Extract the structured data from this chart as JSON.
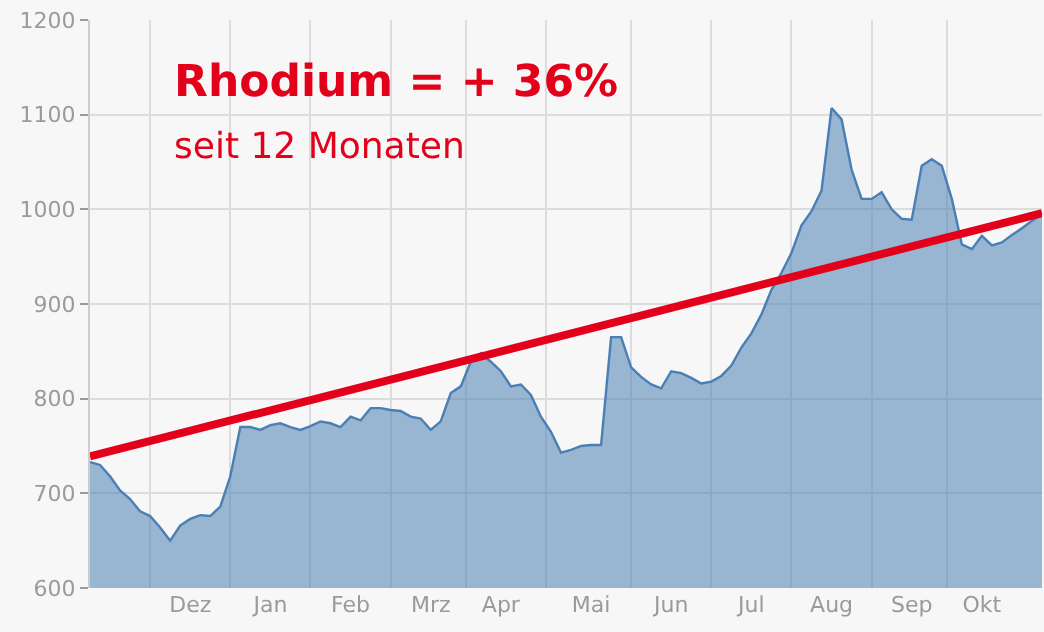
{
  "chart_data": {
    "type": "area",
    "title": "Rhodium = + 36%",
    "subtitle": "seit 12 Monaten",
    "categories": [
      null,
      null,
      null,
      null,
      null,
      null,
      null,
      null,
      null,
      null,
      "Dez",
      null,
      null,
      null,
      null,
      null,
      null,
      null,
      "Jan",
      null,
      null,
      null,
      null,
      null,
      null,
      null,
      "Feb",
      null,
      null,
      null,
      null,
      null,
      null,
      null,
      "Mrz",
      null,
      null,
      null,
      null,
      null,
      null,
      "Apr",
      null,
      null,
      null,
      null,
      null,
      null,
      null,
      null,
      "Mai",
      null,
      null,
      null,
      null,
      null,
      null,
      null,
      "Jun",
      null,
      null,
      null,
      null,
      null,
      null,
      null,
      "Jul",
      null,
      null,
      null,
      null,
      null,
      null,
      null,
      "Aug",
      null,
      null,
      null,
      null,
      null,
      null,
      null,
      "Sep",
      null,
      null,
      null,
      null,
      null,
      null,
      "Okt",
      null,
      null,
      null,
      null,
      null,
      null
    ],
    "series": [
      {
        "color": "#4a7fb5",
        "values": [
          733,
          730,
          718,
          703,
          694,
          681,
          676,
          664,
          650,
          666,
          673,
          677,
          676,
          686,
          718,
          770,
          770,
          767,
          772,
          774,
          770,
          767,
          771,
          776,
          774,
          770,
          781,
          777,
          790,
          790,
          788,
          787,
          781,
          779,
          767,
          776,
          806,
          813,
          839,
          848,
          839,
          829,
          813,
          815,
          804,
          781,
          765,
          743,
          746,
          750,
          751,
          751,
          865,
          865,
          833,
          823,
          815,
          811,
          829,
          827,
          822,
          816,
          818,
          824,
          835,
          854,
          869,
          889,
          915,
          933,
          954,
          983,
          998,
          1020,
          1107,
          1095,
          1042,
          1011,
          1011,
          1018,
          1000,
          990,
          989,
          1046,
          1053,
          1046,
          1011,
          963,
          958,
          972,
          962,
          965,
          973,
          980,
          988,
          995
        ]
      },
      {
        "type": "line",
        "color": "#e2001a",
        "values": [
          739,
          null,
          null,
          null,
          null,
          null,
          null,
          null,
          null,
          null,
          null,
          null,
          null,
          null,
          null,
          null,
          null,
          null,
          null,
          null,
          null,
          null,
          null,
          null,
          null,
          null,
          null,
          null,
          null,
          null,
          null,
          null,
          null,
          null,
          null,
          null,
          null,
          null,
          null,
          null,
          null,
          null,
          null,
          null,
          null,
          null,
          null,
          null,
          null,
          null,
          null,
          null,
          null,
          null,
          null,
          null,
          null,
          null,
          null,
          null,
          null,
          null,
          null,
          null,
          null,
          null,
          null,
          null,
          null,
          null,
          null,
          null,
          null,
          null,
          null,
          null,
          null,
          null,
          null,
          null,
          null,
          null,
          null,
          null,
          null,
          null,
          null,
          null,
          null,
          null,
          null,
          null,
          null,
          null,
          null,
          996
        ]
      }
    ],
    "ylim": [
      600,
      1200
    ],
    "yticks": [
      600,
      700,
      800,
      900,
      1000,
      1100,
      1200
    ],
    "grid": true
  }
}
